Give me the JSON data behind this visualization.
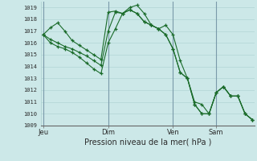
{
  "title": "Pression niveau de la mer( hPa )",
  "bg_color": "#cce8e8",
  "grid_color": "#aacfcf",
  "line_color": "#1a6b2a",
  "vline_color": "#7a9aaa",
  "ylim": [
    1009,
    1019.5
  ],
  "yticks": [
    1009,
    1010,
    1011,
    1012,
    1013,
    1014,
    1015,
    1016,
    1017,
    1018,
    1019
  ],
  "xtick_labels": [
    "Jeu",
    "Dim",
    "Ven",
    "Sam"
  ],
  "xtick_positions": [
    0,
    9,
    18,
    24
  ],
  "vline_positions": [
    0,
    9,
    18,
    24
  ],
  "series": [
    [
      1016.7,
      1017.3,
      1017.7,
      1017.0,
      1016.2,
      1015.8,
      1015.4,
      1015.0,
      1014.6,
      1018.6,
      1018.7,
      1018.5,
      1019.0,
      1019.2,
      1018.5,
      1017.5,
      1017.2,
      1017.5,
      1016.7,
      1014.5,
      1013.0,
      1011.0,
      1010.8,
      1010.0,
      1011.8,
      1012.3,
      1011.5,
      1011.5,
      1010.0,
      1009.5
    ],
    [
      1016.7,
      1016.3,
      1016.0,
      1015.7,
      1015.5,
      1015.2,
      1014.9,
      1014.5,
      1014.1,
      1017.0,
      1018.6,
      1018.5,
      1018.8,
      1018.5,
      1017.8,
      1017.5,
      1017.2,
      1016.7,
      1015.5,
      1013.5,
      1013.0,
      1010.8,
      1010.0,
      1010.0,
      1011.8,
      1012.3,
      1011.5,
      1011.5,
      1010.0,
      1009.5
    ],
    [
      1016.7,
      1016.0,
      1015.7,
      1015.5,
      1015.2,
      1014.8,
      1014.3,
      1013.8,
      1013.4,
      1016.0,
      1017.2,
      1018.5,
      1018.8,
      1018.5,
      1017.8,
      1017.5,
      1017.2,
      1016.7,
      1015.5,
      1013.5,
      1013.0,
      1010.8,
      1010.0,
      1010.0,
      1011.8,
      1012.3,
      1011.5,
      1011.5,
      1010.0,
      1009.5
    ]
  ]
}
